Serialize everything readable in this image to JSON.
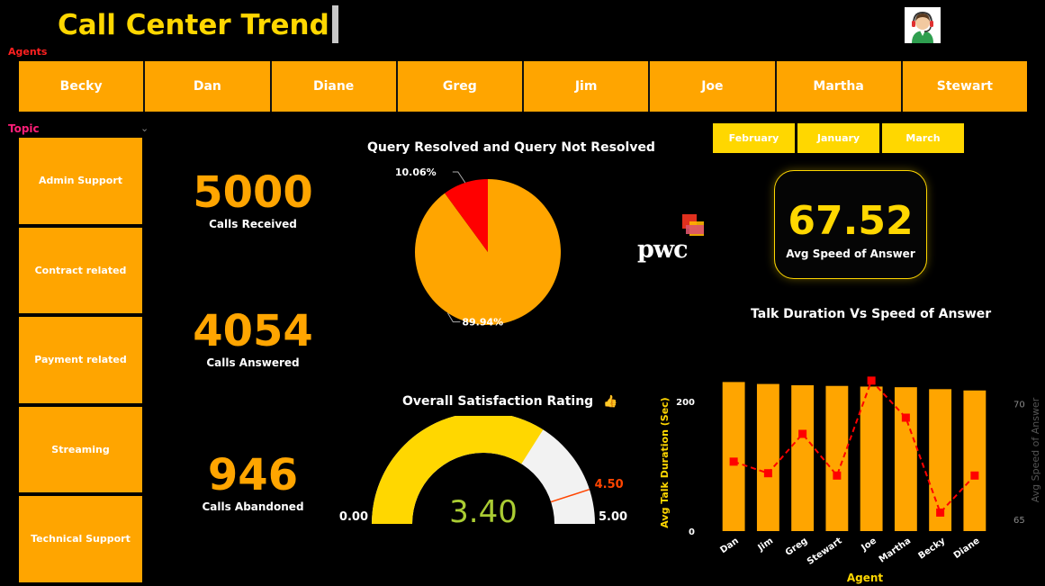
{
  "header": {
    "title": "Call Center Trend",
    "avatar_icon": "call-center-agent-icon"
  },
  "agents": {
    "label": "Agents",
    "items": [
      "Becky",
      "Dan",
      "Diane",
      "Greg",
      "Jim",
      "Joe",
      "Martha",
      "Stewart"
    ]
  },
  "topic": {
    "label": "Topic",
    "items": [
      "Admin Support",
      "Contract related",
      "Payment related",
      "Streaming",
      "Technical Support"
    ]
  },
  "kpis": {
    "calls_received": {
      "value": "5000",
      "label": "Calls Received"
    },
    "calls_answered": {
      "value": "4054",
      "label": "Calls Answered"
    },
    "calls_abandoned": {
      "value": "946",
      "label": "Calls Abandoned"
    }
  },
  "months": [
    "February",
    "January",
    "March"
  ],
  "asa_card": {
    "value": "67.52",
    "label": "Avg Speed of Answer"
  },
  "logo": {
    "text": "pwc"
  },
  "colors": {
    "orange": "#FFA500",
    "yellow": "#FFD700",
    "red": "#FF0000",
    "gauge_track": "#F2F2F2",
    "gauge_value_text": "#AACC33",
    "target_text": "#FF4500"
  },
  "chart_data": [
    {
      "type": "pie",
      "title": "Query Resolved and Query Not Resolved",
      "labels": [
        "",
        ""
      ],
      "values": [
        89.94,
        10.06
      ],
      "value_labels": [
        "89.94%",
        "10.06%"
      ],
      "colors": [
        "#FFA500",
        "#FF0000"
      ]
    },
    {
      "type": "gauge",
      "title": "Overall Satisfaction Rating",
      "title_icon": "thumbs-up-icon",
      "value": 3.4,
      "value_label": "3.40",
      "min": 0,
      "min_label": "0.00",
      "max": 5,
      "max_label": "5.00",
      "target": 4.5,
      "target_label": "4.50"
    },
    {
      "type": "bar",
      "title": "Talk Duration Vs Speed of Answer",
      "xlabel": "Agent",
      "ylabel": "Avg Talk Duration (Sec)",
      "y2label": "Avg Speed of Answer",
      "categories": [
        "Dan",
        "Jim",
        "Greg",
        "Stewart",
        "Joe",
        "Martha",
        "Becky",
        "Diane"
      ],
      "series": [
        {
          "type": "bar",
          "values": [
            230,
            227,
            225,
            224,
            223,
            222,
            219,
            217
          ]
        },
        {
          "type": "line",
          "axis": "right",
          "values": [
            67.5,
            67.0,
            68.7,
            66.9,
            71.0,
            69.4,
            65.3,
            66.9
          ]
        }
      ],
      "yticks": [
        "0",
        "200"
      ],
      "y2ticks": [
        "65",
        "70"
      ],
      "ylim": [
        0,
        250
      ],
      "y2lim": [
        64.5,
        71.5
      ]
    }
  ]
}
